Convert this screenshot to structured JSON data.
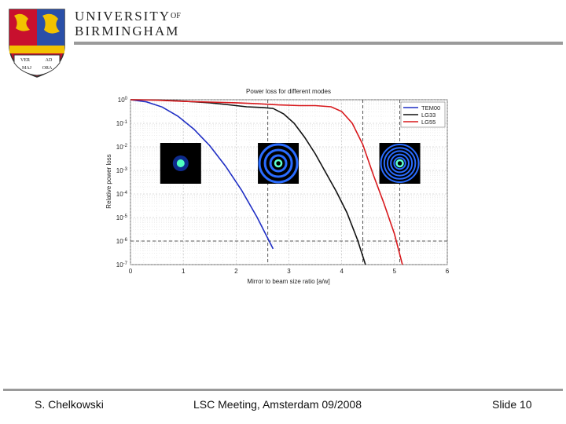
{
  "header": {
    "university_line1": "UNIVERSITY",
    "university_of": "OF",
    "university_line2": "BIRMINGHAM",
    "crest_text": [
      "VER",
      "AD",
      "MAJ",
      "ORA"
    ]
  },
  "footer": {
    "author": "S. Chelkowski",
    "meeting": "LSC Meeting, Amsterdam 09/2008",
    "slide": "Slide 10"
  },
  "colors": {
    "tem00": "#1f2ec4",
    "lg33": "#111111",
    "lg55": "#d8181c",
    "rule": "#9a9a9a"
  },
  "chart_data": {
    "type": "line",
    "title": "Power loss for different modes",
    "xlabel": "Mirror to beam size ratio [a/w]",
    "ylabel": "Relative power loss",
    "xlim": [
      0,
      6
    ],
    "ylim_log10": [
      -7,
      0
    ],
    "x_ticks": [
      0,
      1,
      2,
      3,
      4,
      5,
      6
    ],
    "y_tick_labels": [
      {
        "exp": 0,
        "base": "10",
        "sup": "0"
      },
      {
        "exp": -1,
        "base": "10",
        "sup": "-1"
      },
      {
        "exp": -2,
        "base": "10",
        "sup": "-2"
      },
      {
        "exp": -3,
        "base": "10",
        "sup": "-3"
      },
      {
        "exp": -4,
        "base": "10",
        "sup": "-4"
      },
      {
        "exp": -5,
        "base": "10",
        "sup": "-5"
      },
      {
        "exp": -6,
        "base": "10",
        "sup": "-6"
      },
      {
        "exp": -7,
        "base": "10",
        "sup": "-7"
      }
    ],
    "grid": true,
    "legend_position": "top-right",
    "series": [
      {
        "name": "TEM00",
        "color": "#1f2ec4",
        "x": [
          0,
          0.3,
          0.6,
          0.9,
          1.2,
          1.5,
          1.8,
          2.1,
          2.4,
          2.7
        ],
        "log10_y": [
          0,
          -0.09,
          -0.31,
          -0.7,
          -1.25,
          -1.95,
          -2.82,
          -3.83,
          -5.0,
          -6.33
        ]
      },
      {
        "name": "LG33",
        "color": "#111111",
        "x": [
          0,
          0.5,
          1.0,
          1.5,
          1.8,
          2.0,
          2.2,
          2.5,
          2.7,
          2.9,
          3.1,
          3.3,
          3.5,
          3.7,
          3.9,
          4.1,
          4.3,
          4.45
        ],
        "log10_y": [
          0,
          -0.01,
          -0.06,
          -0.13,
          -0.2,
          -0.25,
          -0.3,
          -0.33,
          -0.37,
          -0.6,
          -1.0,
          -1.6,
          -2.3,
          -3.1,
          -3.9,
          -4.8,
          -5.95,
          -7.0
        ]
      },
      {
        "name": "LG55",
        "color": "#d8181c",
        "x": [
          0,
          0.5,
          1.0,
          1.5,
          2.0,
          2.4,
          2.8,
          3.2,
          3.5,
          3.8,
          4.0,
          4.2,
          4.4,
          4.6,
          4.8,
          5.0,
          5.15
        ],
        "log10_y": [
          0,
          -0.02,
          -0.07,
          -0.1,
          -0.13,
          -0.17,
          -0.22,
          -0.25,
          -0.25,
          -0.3,
          -0.5,
          -1.0,
          -1.9,
          -3.2,
          -4.4,
          -5.7,
          -7.0
        ]
      }
    ],
    "vertical_markers_x": [
      2.6,
      4.4,
      5.1
    ],
    "horizontal_marker_log10_y": -6,
    "mode_images": [
      {
        "label": "TEM00",
        "x_center": 0.95,
        "log10_y_center": -2.7,
        "rings": 0
      },
      {
        "label": "LG33",
        "x_center": 2.8,
        "log10_y_center": -2.7,
        "rings": 3
      },
      {
        "label": "LG55",
        "x_center": 5.1,
        "log10_y_center": -2.7,
        "rings": 5
      }
    ]
  }
}
